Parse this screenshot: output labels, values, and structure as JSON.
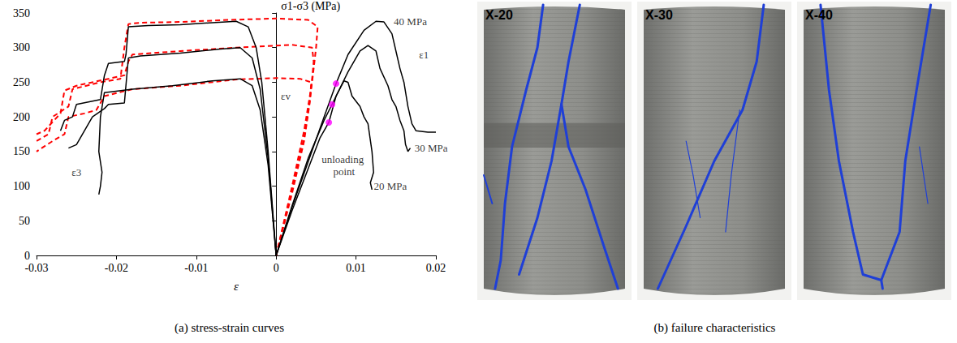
{
  "chart_data": {
    "type": "line",
    "x_label": "ε",
    "y_label": "σ1-σ3 (MPa)",
    "xlim": [
      -0.03,
      0.02
    ],
    "xticks": [
      -0.03,
      -0.02,
      -0.01,
      0,
      0.01,
      0.02
    ],
    "ylim": [
      0,
      350
    ],
    "yticks": [
      0,
      50,
      100,
      150,
      200,
      250,
      300,
      350
    ],
    "grid": false,
    "series": [
      {
        "color": "#000000",
        "line_style": "solid",
        "x": [
          0,
          0.002,
          0.004,
          0.006,
          0.0075,
          0.009,
          0.011,
          0.0125,
          0.0135,
          0.0145,
          0.015,
          0.0155,
          0.016,
          0.0165,
          0.017,
          0.0175,
          0.019,
          0.02
        ],
        "values": [
          0,
          70,
          135,
          200,
          248,
          290,
          325,
          338,
          337,
          320,
          295,
          270,
          250,
          215,
          190,
          180,
          178,
          178
        ]
      },
      {
        "color": "#000000",
        "line_style": "solid",
        "x": [
          0,
          0.002,
          0.004,
          0.006,
          0.007,
          0.009,
          0.0105,
          0.0115,
          0.0125,
          0.013,
          0.014,
          0.0145,
          0.015,
          0.0155,
          0.016,
          0.0162,
          0.0165,
          0.0168
        ],
        "values": [
          0,
          72,
          140,
          195,
          218,
          265,
          295,
          303,
          295,
          270,
          245,
          225,
          215,
          195,
          180,
          160,
          150,
          155
        ]
      },
      {
        "color": "#000000",
        "line_style": "solid",
        "x": [
          0,
          0.002,
          0.004,
          0.0055,
          0.0066,
          0.0075,
          0.0085,
          0.009,
          0.0095,
          0.0105,
          0.011,
          0.0115,
          0.012,
          0.0122,
          0.0118,
          0.012
        ],
        "values": [
          0,
          65,
          125,
          170,
          192,
          230,
          252,
          250,
          230,
          215,
          200,
          190,
          150,
          120,
          105,
          95
        ]
      },
      {
        "color": "#000000",
        "line_style": "solid",
        "x": [
          0,
          -0.001,
          -0.0018,
          -0.0025,
          -0.0035,
          -0.005,
          -0.008,
          -0.012,
          -0.016,
          -0.0185,
          -0.0188,
          -0.019,
          -0.021,
          -0.0215,
          -0.022,
          -0.025,
          -0.0255,
          -0.0265,
          -0.027
        ],
        "values": [
          0,
          150,
          250,
          300,
          330,
          338,
          336,
          333,
          332,
          330,
          290,
          280,
          277,
          260,
          225,
          218,
          200,
          195,
          180
        ]
      },
      {
        "color": "#000000",
        "line_style": "solid",
        "x": [
          0,
          -0.001,
          -0.002,
          -0.003,
          -0.0045,
          -0.007,
          -0.012,
          -0.017,
          -0.0185,
          -0.019,
          -0.021,
          -0.0215,
          -0.023,
          -0.025,
          -0.026
        ],
        "values": [
          0,
          140,
          240,
          285,
          300,
          298,
          292,
          288,
          285,
          220,
          218,
          212,
          200,
          160,
          155
        ]
      },
      {
        "color": "#000000",
        "line_style": "solid",
        "x": [
          0,
          -0.001,
          -0.002,
          -0.003,
          -0.0045,
          -0.008,
          -0.013,
          -0.018,
          -0.0215,
          -0.022,
          -0.0222,
          -0.0218,
          -0.022,
          -0.0222
        ],
        "values": [
          0,
          130,
          210,
          245,
          255,
          252,
          245,
          240,
          235,
          200,
          150,
          120,
          100,
          88
        ]
      },
      {
        "color": "#ff0000",
        "line_style": "dashed",
        "x": [
          0,
          0.002,
          0.0035,
          0.0045,
          0.005,
          0.0052,
          0.004,
          0,
          -0.006,
          -0.012,
          -0.017,
          -0.0185,
          -0.019,
          -0.0195,
          -0.022,
          -0.0255,
          -0.026,
          -0.028,
          -0.0285,
          -0.03
        ],
        "values": [
          0,
          100,
          180,
          250,
          300,
          330,
          340,
          342,
          340,
          337,
          336,
          334,
          300,
          255,
          250,
          240,
          215,
          200,
          175,
          165
        ]
      },
      {
        "color": "#ff0000",
        "line_style": "dashed",
        "x": [
          0,
          0.002,
          0.0035,
          0.0043,
          0.0047,
          0.0045,
          0.002,
          -0.005,
          -0.012,
          -0.018,
          -0.0185,
          -0.019,
          -0.021,
          -0.025,
          -0.0265,
          -0.027,
          -0.029,
          -0.03
        ],
        "values": [
          0,
          95,
          170,
          230,
          280,
          300,
          304,
          300,
          295,
          290,
          280,
          260,
          255,
          245,
          238,
          205,
          180,
          175
        ]
      },
      {
        "color": "#ff0000",
        "line_style": "dashed",
        "x": [
          0,
          0.002,
          0.0035,
          0.0042,
          0.0044,
          0.003,
          0,
          -0.005,
          -0.012,
          -0.018,
          -0.0215,
          -0.0225,
          -0.024,
          -0.026,
          -0.0265,
          -0.028,
          -0.03
        ],
        "values": [
          0,
          90,
          165,
          220,
          250,
          255,
          256,
          254,
          245,
          240,
          230,
          210,
          205,
          200,
          175,
          165,
          150
        ]
      },
      {
        "type": "scatter",
        "color": "#ff00ff",
        "marker": "circle",
        "x": [
          0.0075,
          0.007,
          0.0066
        ],
        "values": [
          248,
          218,
          192
        ]
      }
    ],
    "annotations": [
      {
        "text": "40 MPa",
        "x": 0.0168,
        "y": 338
      },
      {
        "text": "ε1",
        "x": 0.0185,
        "y": 290
      },
      {
        "text": "30 MPa",
        "x": 0.0194,
        "y": 155
      },
      {
        "text": "20 MPa",
        "x": 0.0143,
        "y": 100
      },
      {
        "text": "εv",
        "x": 0.0012,
        "y": 230
      },
      {
        "text": "ε3",
        "x": -0.025,
        "y": 120
      },
      {
        "text": "unloading point",
        "x": 0.0085,
        "y": 130
      }
    ]
  },
  "captions": [
    "(a) stress-strain curves",
    "(b) failure characteristics"
  ],
  "photos": [
    {
      "label": "X-20"
    },
    {
      "label": "X-30"
    },
    {
      "label": "X-40"
    }
  ]
}
